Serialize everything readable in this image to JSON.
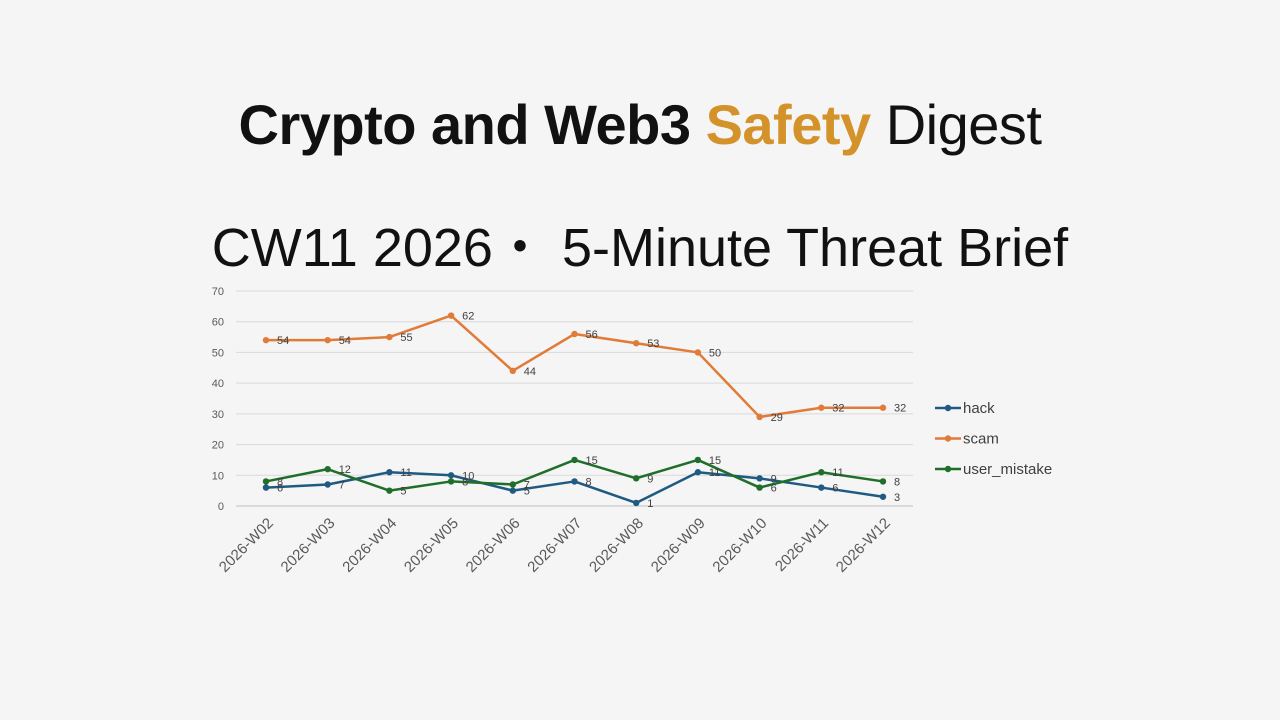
{
  "header": {
    "title_part1": "Crypto and Web3",
    "title_highlight": "Safety",
    "title_part2": "Digest",
    "subtitle": "CW11  2026・ 5-Minute Threat Brief"
  },
  "colors": {
    "highlight": "#d4922a",
    "background": "#f5f5f5"
  },
  "chart_data": {
    "type": "line",
    "categories": [
      "2026-W02",
      "2026-W03",
      "2026-W04",
      "2026-W05",
      "2026-W06",
      "2026-W07",
      "2026-W08",
      "2026-W09",
      "2026-W10",
      "2026-W11",
      "2026-W12"
    ],
    "series": [
      {
        "name": "hack",
        "color": "#1f5a82",
        "values": [
          6,
          7,
          11,
          10,
          5,
          8,
          1,
          11,
          9,
          6,
          3
        ]
      },
      {
        "name": "scam",
        "color": "#e07b39",
        "values": [
          54,
          54,
          55,
          62,
          44,
          56,
          53,
          50,
          29,
          32,
          32
        ]
      },
      {
        "name": "user_mistake",
        "color": "#1f6e2a",
        "values": [
          8,
          12,
          5,
          8,
          7,
          15,
          9,
          15,
          6,
          11,
          8
        ]
      }
    ],
    "ylim": [
      0,
      70
    ],
    "yticks": [
      0,
      10,
      20,
      30,
      40,
      50,
      60,
      70
    ],
    "grid": true,
    "legend": "right",
    "data_labels": true
  }
}
